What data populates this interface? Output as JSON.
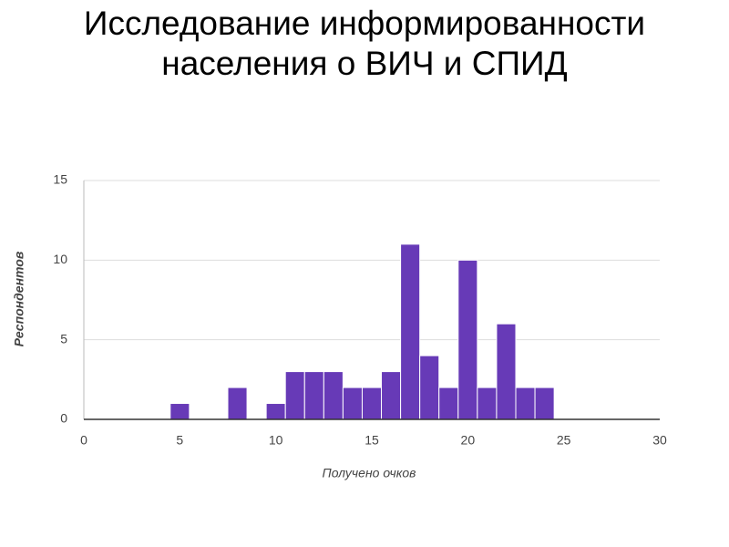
{
  "chart_data": {
    "type": "histogram",
    "title": "Исследование информированности населения о ВИЧ и СПИД",
    "x_label": "Получено очков",
    "y_label": "Респондентов",
    "bins": [
      4.5,
      5.5,
      6.5,
      7.5,
      8.5,
      9.5,
      10.5,
      11.5,
      12.5,
      13.5,
      14.5,
      15.5,
      16.5,
      17.5,
      18.5,
      19.5,
      20.5,
      21.5,
      22.5,
      23.5,
      24.5
    ],
    "counts": [
      1,
      0,
      0,
      2,
      0,
      1,
      3,
      3,
      3,
      2,
      2,
      3,
      11,
      4,
      2,
      10,
      2,
      6,
      2,
      2
    ],
    "color": "#673ab7",
    "xlim": [
      0,
      30
    ],
    "xticks": [
      0,
      5,
      10,
      15,
      20,
      25,
      30
    ],
    "ylim": [
      0,
      15
    ],
    "yticks": [
      0,
      5,
      10,
      15
    ],
    "grid": true
  }
}
